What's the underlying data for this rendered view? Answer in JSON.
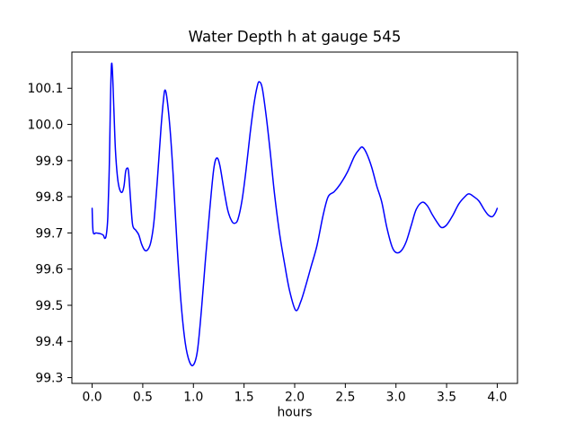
{
  "chart_data": {
    "type": "line",
    "title": "Water Depth h at gauge 545",
    "xlabel": "hours",
    "ylabel": "",
    "grid": false,
    "legend": "none",
    "background_color": "#ffffff",
    "spine_color": "#000000",
    "text_color": "#000000",
    "xlim": [
      -0.2,
      4.2
    ],
    "ylim": [
      99.284,
      100.2
    ],
    "xticks": {
      "values": [
        0.0,
        0.5,
        1.0,
        1.5,
        2.0,
        2.5,
        3.0,
        3.5,
        4.0
      ],
      "labels": [
        "0.0",
        "0.5",
        "1.0",
        "1.5",
        "2.0",
        "2.5",
        "3.0",
        "3.5",
        "4.0"
      ]
    },
    "yticks": {
      "values": [
        99.3,
        99.4,
        99.5,
        99.6,
        99.7,
        99.8,
        99.9,
        100.0,
        100.1
      ],
      "labels": [
        "99.3",
        "99.4",
        "99.5",
        "99.6",
        "99.7",
        "99.8",
        "99.9",
        "100.0",
        "100.1"
      ]
    },
    "series": [
      {
        "name": "water-depth-h",
        "color": "#0000ff",
        "line_width": 1.5,
        "x": [
          0.0,
          0.01,
          0.04,
          0.08,
          0.11,
          0.125,
          0.14,
          0.155,
          0.17,
          0.18,
          0.19,
          0.2,
          0.215,
          0.23,
          0.25,
          0.27,
          0.295,
          0.315,
          0.33,
          0.345,
          0.36,
          0.38,
          0.4,
          0.43,
          0.46,
          0.49,
          0.52,
          0.55,
          0.58,
          0.61,
          0.645,
          0.68,
          0.705,
          0.72,
          0.74,
          0.77,
          0.8,
          0.84,
          0.88,
          0.92,
          0.96,
          1.0,
          1.04,
          1.08,
          1.12,
          1.16,
          1.2,
          1.23,
          1.26,
          1.3,
          1.34,
          1.38,
          1.41,
          1.44,
          1.48,
          1.52,
          1.56,
          1.6,
          1.63,
          1.65,
          1.68,
          1.72,
          1.76,
          1.8,
          1.85,
          1.9,
          1.95,
          2.01,
          2.06,
          2.11,
          2.16,
          2.22,
          2.28,
          2.33,
          2.39,
          2.45,
          2.52,
          2.59,
          2.64,
          2.67,
          2.71,
          2.76,
          2.81,
          2.86,
          2.91,
          2.96,
          3.0,
          3.05,
          3.1,
          3.15,
          3.2,
          3.26,
          3.31,
          3.36,
          3.41,
          3.45,
          3.5,
          3.56,
          3.62,
          3.68,
          3.72,
          3.77,
          3.82,
          3.87,
          3.91,
          3.95,
          3.98,
          4.0
        ],
        "y": [
          99.768,
          99.703,
          99.7,
          99.698,
          99.694,
          99.685,
          99.695,
          99.745,
          99.89,
          100.05,
          100.16,
          100.15,
          100.04,
          99.93,
          99.855,
          99.822,
          99.812,
          99.83,
          99.868,
          99.879,
          99.868,
          99.79,
          99.722,
          99.708,
          99.695,
          99.668,
          99.652,
          99.654,
          99.675,
          99.73,
          99.85,
          99.99,
          100.07,
          100.095,
          100.07,
          99.985,
          99.86,
          99.66,
          99.5,
          99.395,
          99.345,
          99.335,
          99.375,
          99.49,
          99.63,
          99.76,
          99.875,
          99.907,
          99.888,
          99.822,
          99.762,
          99.732,
          99.727,
          99.738,
          99.79,
          99.875,
          99.975,
          100.06,
          100.105,
          100.118,
          100.1,
          100.02,
          99.92,
          99.81,
          99.7,
          99.615,
          99.54,
          99.486,
          99.51,
          99.555,
          99.605,
          99.665,
          99.748,
          99.8,
          99.814,
          99.835,
          99.868,
          99.912,
          99.932,
          99.937,
          99.92,
          99.882,
          99.83,
          99.785,
          99.715,
          99.663,
          99.646,
          99.65,
          99.675,
          99.72,
          99.765,
          99.785,
          99.775,
          99.75,
          99.728,
          99.715,
          99.722,
          99.748,
          99.78,
          99.8,
          99.808,
          99.8,
          99.788,
          99.765,
          99.75,
          99.745,
          99.755,
          99.768
        ]
      }
    ]
  }
}
